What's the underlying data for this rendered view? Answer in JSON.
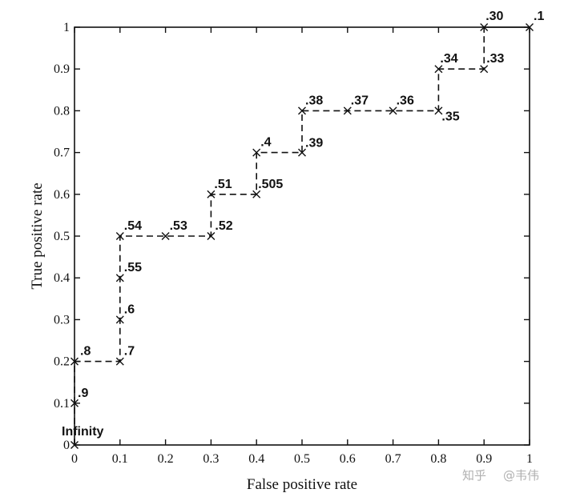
{
  "chart_data": {
    "type": "line",
    "xlabel": "False positive rate",
    "ylabel": "True positive rate",
    "xlim": [
      0,
      1
    ],
    "ylim": [
      0,
      1
    ],
    "xticks": [
      0,
      0.1,
      0.2,
      0.3,
      0.4,
      0.5,
      0.6,
      0.7,
      0.8,
      0.9,
      1
    ],
    "yticks": [
      0,
      0.1,
      0.2,
      0.3,
      0.4,
      0.5,
      0.6,
      0.7,
      0.8,
      0.9,
      1
    ],
    "xtick_labels": [
      "0",
      "0.1",
      "0.2",
      "0.3",
      "0.4",
      "0.5",
      "0.6",
      "0.7",
      "0.8",
      "0.9",
      "1"
    ],
    "ytick_labels": [
      "0",
      "0.1",
      "0.2",
      "0.3",
      "0.4",
      "0.5",
      "0.6",
      "0.7",
      "0.8",
      "0.9",
      "1"
    ],
    "grid": false,
    "line_style": "dashed",
    "marker": "x",
    "points": [
      {
        "x": 0,
        "y": 0,
        "label": "Infinity"
      },
      {
        "x": 0,
        "y": 0.1,
        "label": ".9"
      },
      {
        "x": 0,
        "y": 0.2,
        "label": ".8"
      },
      {
        "x": 0.1,
        "y": 0.2,
        "label": ".7"
      },
      {
        "x": 0.1,
        "y": 0.3,
        "label": ".6"
      },
      {
        "x": 0.1,
        "y": 0.4,
        "label": ".55"
      },
      {
        "x": 0.1,
        "y": 0.5,
        "label": ".54"
      },
      {
        "x": 0.2,
        "y": 0.5,
        "label": ".53"
      },
      {
        "x": 0.3,
        "y": 0.5,
        "label": ".52"
      },
      {
        "x": 0.3,
        "y": 0.6,
        "label": ".51"
      },
      {
        "x": 0.4,
        "y": 0.6,
        "label": ".505"
      },
      {
        "x": 0.4,
        "y": 0.7,
        "label": ".4"
      },
      {
        "x": 0.5,
        "y": 0.7,
        "label": ".39"
      },
      {
        "x": 0.5,
        "y": 0.8,
        "label": ".38"
      },
      {
        "x": 0.6,
        "y": 0.8,
        "label": ".37"
      },
      {
        "x": 0.7,
        "y": 0.8,
        "label": ".36"
      },
      {
        "x": 0.8,
        "y": 0.8,
        "label": ".35"
      },
      {
        "x": 0.8,
        "y": 0.9,
        "label": ".34"
      },
      {
        "x": 0.9,
        "y": 0.9,
        "label": ".33"
      },
      {
        "x": 0.9,
        "y": 1.0,
        "label": ".30"
      },
      {
        "x": 1.0,
        "y": 1.0,
        "label": ".1"
      }
    ]
  },
  "watermark": {
    "site": "知乎",
    "user": "@韦伟"
  }
}
